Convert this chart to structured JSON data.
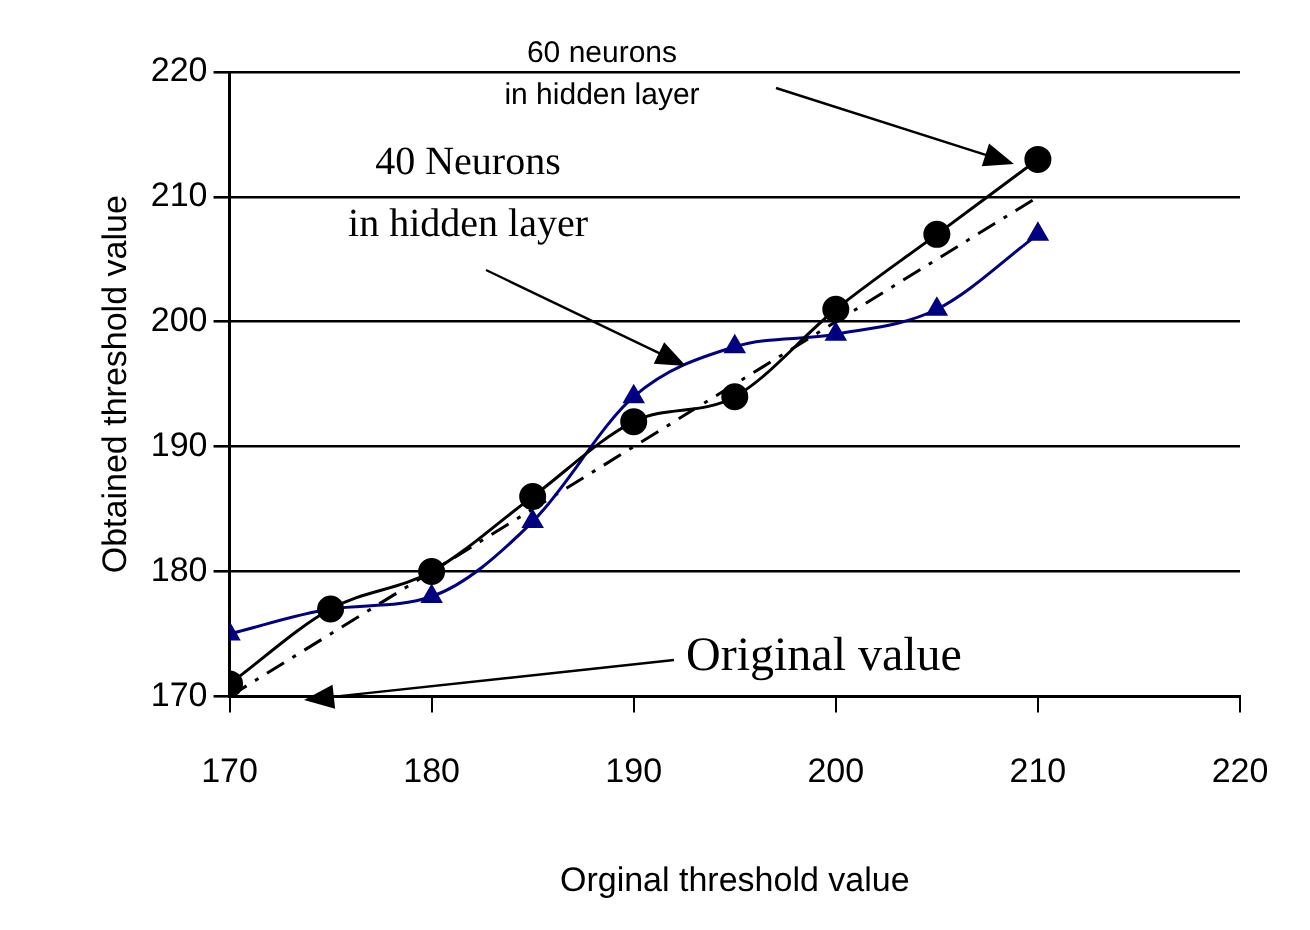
{
  "chart_data": {
    "type": "line",
    "xlabel": "Orginal threshold value",
    "ylabel": "Obtained threshold value",
    "x": [
      170,
      175,
      180,
      185,
      190,
      195,
      200,
      205,
      210
    ],
    "series": [
      {
        "color": "#000000",
        "marker": "circle",
        "line_style": "solid",
        "values": [
          171,
          177,
          180,
          186,
          192,
          194,
          201,
          207,
          213
        ]
      },
      {
        "color": "#000080",
        "marker": "triangle",
        "line_style": "solid",
        "values": [
          175,
          177,
          178,
          184,
          194,
          198,
          199,
          201,
          207
        ]
      },
      {
        "color": "#000000",
        "marker": "none",
        "line_style": "dashed",
        "values": [
          170,
          175,
          180,
          185,
          190,
          195,
          200,
          205,
          210
        ]
      }
    ],
    "xlim": [
      170,
      220
    ],
    "xticks": [
      170,
      180,
      190,
      200,
      210,
      220
    ],
    "ylim": [
      170,
      220
    ],
    "yticks": [
      170,
      180,
      190,
      200,
      210,
      220
    ],
    "grid": "y",
    "legend": false,
    "annotations": [
      "60 neurons\nin hidden layer",
      "40 Neurons\nin hidden layer",
      "Original value"
    ]
  }
}
